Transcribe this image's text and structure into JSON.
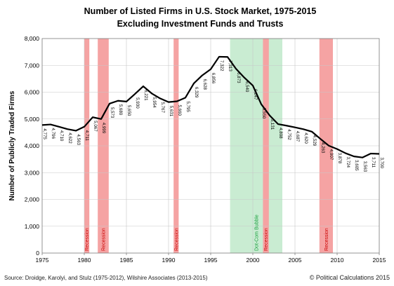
{
  "chart_data": {
    "type": "line",
    "title": "Number of Listed Firms in U.S. Stock Market, 1975-2015",
    "subtitle": "Excluding Investment Funds and Trusts",
    "ylabel": "Number of Publicly Traded Firms",
    "xlim": [
      1975,
      2015
    ],
    "ylim": [
      0,
      8000
    ],
    "xticks": [
      1975,
      1980,
      1985,
      1990,
      1995,
      2000,
      2005,
      2010,
      2015
    ],
    "xtick_labels": [
      "1975",
      "1980",
      "1985",
      "1990",
      "1995",
      "2000",
      "2005",
      "2010",
      "2015"
    ],
    "yticks": [
      0,
      1000,
      2000,
      3000,
      4000,
      5000,
      6000,
      7000,
      8000
    ],
    "ytick_labels": [
      "0",
      "1,000",
      "2,000",
      "3,000",
      "4,000",
      "5,000",
      "6,000",
      "7,000",
      "8,000"
    ],
    "grid": true,
    "line_color": "#000000",
    "series": [
      {
        "x": [
          1975,
          1976,
          1977,
          1978,
          1979,
          1980,
          1981,
          1982,
          1983,
          1984,
          1985,
          1986,
          1987,
          1988,
          1989,
          1990,
          1991,
          1992,
          1993,
          1994,
          1995,
          1996,
          1997,
          1998,
          1999,
          2000,
          2001,
          2002,
          2003,
          2004,
          2005,
          2006,
          2007,
          2008,
          2009,
          2010,
          2011,
          2012,
          2013,
          2014,
          2015
        ],
        "y": [
          4775,
          4796,
          4710,
          4622,
          4563,
          4711,
          5067,
          4999,
          5573,
          5680,
          5650,
          5930,
          6221,
          5954,
          5767,
          5631,
          5660,
          5795,
          6329,
          6628,
          6856,
          7322,
          7313,
          6873,
          6540,
          6247,
          5550,
          5131,
          4808,
          4752,
          4687,
          4620,
          4529,
          4263,
          4007,
          3878,
          3724,
          3605,
          3563,
          3711,
          3700
        ]
      }
    ],
    "data_labels": [
      {
        "x": 1975,
        "text": "4,775"
      },
      {
        "x": 1976,
        "text": "4,796"
      },
      {
        "x": 1977,
        "text": "4,710"
      },
      {
        "x": 1978,
        "text": "4,622"
      },
      {
        "x": 1979,
        "text": "4,563"
      },
      {
        "x": 1980,
        "text": "4,711"
      },
      {
        "x": 1981,
        "text": "5,067"
      },
      {
        "x": 1982,
        "text": "4,999"
      },
      {
        "x": 1983,
        "text": "5,573"
      },
      {
        "x": 1984,
        "text": "5,680"
      },
      {
        "x": 1985,
        "text": "5,650"
      },
      {
        "x": 1986,
        "text": "5,930"
      },
      {
        "x": 1987,
        "text": "6,221"
      },
      {
        "x": 1988,
        "text": "5,954"
      },
      {
        "x": 1989,
        "text": "5,767"
      },
      {
        "x": 1990,
        "text": "5,631"
      },
      {
        "x": 1991,
        "text": "5,660"
      },
      {
        "x": 1992,
        "text": "5,795"
      },
      {
        "x": 1993,
        "text": "6,329"
      },
      {
        "x": 1994,
        "text": "6,628"
      },
      {
        "x": 1995,
        "text": "6,856"
      },
      {
        "x": 1996,
        "text": "7,322"
      },
      {
        "x": 1997,
        "text": "7,313"
      },
      {
        "x": 1998,
        "text": "6,873"
      },
      {
        "x": 1999,
        "text": "6,540"
      },
      {
        "x": 2000,
        "text": "6,247"
      },
      {
        "x": 2001,
        "text": "5,550"
      },
      {
        "x": 2002,
        "text": "5,131"
      },
      {
        "x": 2003,
        "text": "4,808"
      },
      {
        "x": 2004,
        "text": "4,752"
      },
      {
        "x": 2005,
        "text": "4,687"
      },
      {
        "x": 2006,
        "text": "4,620"
      },
      {
        "x": 2007,
        "text": "4,529"
      },
      {
        "x": 2008,
        "text": "4,263"
      },
      {
        "x": 2009,
        "text": "4,007"
      },
      {
        "x": 2010,
        "text": "3,878"
      },
      {
        "x": 2011,
        "text": "3,724"
      },
      {
        "x": 2012,
        "text": "3,605"
      },
      {
        "x": 2013,
        "text": "3,563"
      },
      {
        "x": 2014,
        "text": "3,711"
      },
      {
        "x": 2015,
        "text": "3,700"
      }
    ],
    "bands": [
      {
        "label": "Recession",
        "x0": 1980.0,
        "x1": 1980.6,
        "color": "#f5a3a3",
        "label_color": "#cc0000"
      },
      {
        "label": "Recession",
        "x0": 1981.6,
        "x1": 1982.9,
        "color": "#f5a3a3",
        "label_color": "#cc0000"
      },
      {
        "label": "Recession",
        "x0": 1990.6,
        "x1": 1991.2,
        "color": "#f5a3a3",
        "label_color": "#cc0000"
      },
      {
        "label": "Dot-Com Bubble",
        "x0": 1997.3,
        "x1": 2003.5,
        "color": "#c9ecd2",
        "label_color": "#1a9f3e"
      },
      {
        "label": "Recession",
        "x0": 2001.2,
        "x1": 2001.9,
        "color": "#f5a3a3",
        "label_color": "#cc0000"
      },
      {
        "label": "Recession",
        "x0": 2007.9,
        "x1": 2009.5,
        "color": "#f5a3a3",
        "label_color": "#cc0000"
      }
    ]
  },
  "footer": {
    "source": "Source: Droidge, Karolyi, and Stulz (1975-2012), Wilshire Associates (2013-2015)",
    "copyright": "© Political Calculations 2015"
  }
}
